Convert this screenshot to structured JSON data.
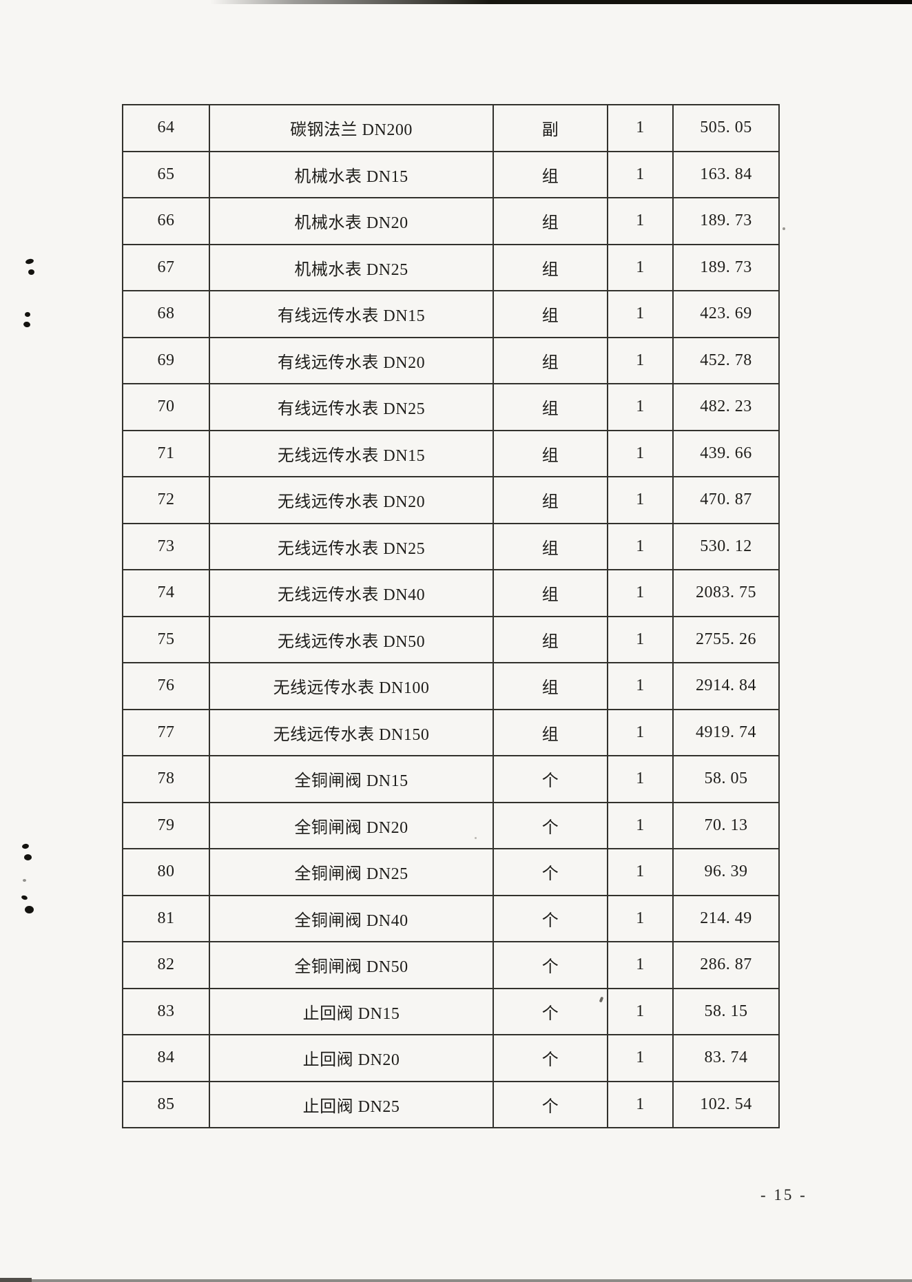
{
  "page": {
    "number_label": "- 15 -"
  },
  "table": {
    "rows": [
      {
        "no": "64",
        "name": "碳钢法兰 DN200",
        "unit": "副",
        "qty": "1",
        "price": "505. 05"
      },
      {
        "no": "65",
        "name": "机械水表 DN15",
        "unit": "组",
        "qty": "1",
        "price": "163. 84"
      },
      {
        "no": "66",
        "name": "机械水表 DN20",
        "unit": "组",
        "qty": "1",
        "price": "189. 73"
      },
      {
        "no": "67",
        "name": "机械水表 DN25",
        "unit": "组",
        "qty": "1",
        "price": "189. 73"
      },
      {
        "no": "68",
        "name": "有线远传水表 DN15",
        "unit": "组",
        "qty": "1",
        "price": "423. 69"
      },
      {
        "no": "69",
        "name": "有线远传水表 DN20",
        "unit": "组",
        "qty": "1",
        "price": "452. 78"
      },
      {
        "no": "70",
        "name": "有线远传水表 DN25",
        "unit": "组",
        "qty": "1",
        "price": "482. 23"
      },
      {
        "no": "71",
        "name": "无线远传水表 DN15",
        "unit": "组",
        "qty": "1",
        "price": "439. 66"
      },
      {
        "no": "72",
        "name": "无线远传水表 DN20",
        "unit": "组",
        "qty": "1",
        "price": "470. 87"
      },
      {
        "no": "73",
        "name": "无线远传水表 DN25",
        "unit": "组",
        "qty": "1",
        "price": "530. 12"
      },
      {
        "no": "74",
        "name": "无线远传水表 DN40",
        "unit": "组",
        "qty": "1",
        "price": "2083. 75"
      },
      {
        "no": "75",
        "name": "无线远传水表 DN50",
        "unit": "组",
        "qty": "1",
        "price": "2755. 26"
      },
      {
        "no": "76",
        "name": "无线远传水表 DN100",
        "unit": "组",
        "qty": "1",
        "price": "2914. 84"
      },
      {
        "no": "77",
        "name": "无线远传水表 DN150",
        "unit": "组",
        "qty": "1",
        "price": "4919. 74"
      },
      {
        "no": "78",
        "name": "全铜闸阀 DN15",
        "unit": "个",
        "qty": "1",
        "price": "58. 05"
      },
      {
        "no": "79",
        "name": "全铜闸阀 DN20",
        "unit": "个",
        "qty": "1",
        "price": "70. 13"
      },
      {
        "no": "80",
        "name": "全铜闸阀 DN25",
        "unit": "个",
        "qty": "1",
        "price": "96. 39"
      },
      {
        "no": "81",
        "name": "全铜闸阀 DN40",
        "unit": "个",
        "qty": "1",
        "price": "214. 49"
      },
      {
        "no": "82",
        "name": "全铜闸阀 DN50",
        "unit": "个",
        "qty": "1",
        "price": "286. 87"
      },
      {
        "no": "83",
        "name": "止回阀 DN15",
        "unit": "个",
        "qty": "1",
        "price": "58. 15"
      },
      {
        "no": "84",
        "name": "止回阀 DN20",
        "unit": "个",
        "qty": "1",
        "price": "83. 74"
      },
      {
        "no": "85",
        "name": "止回阀 DN25",
        "unit": "个",
        "qty": "1",
        "price": "102. 54"
      }
    ]
  }
}
